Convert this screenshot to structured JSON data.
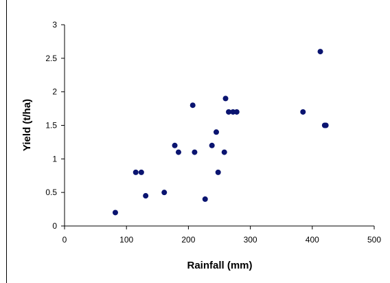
{
  "chart_data": {
    "type": "scatter",
    "title": "",
    "xlabel": "Rainfall (mm)",
    "ylabel": "Yield (t/ha)",
    "xlim": [
      0,
      500
    ],
    "ylim": [
      0,
      3
    ],
    "x_ticks": [
      0,
      100,
      200,
      300,
      400,
      500
    ],
    "y_ticks": [
      0,
      0.5,
      1,
      1.5,
      2,
      2.5,
      3
    ],
    "x_tick_labels": [
      "0",
      "100",
      "200",
      "300",
      "400",
      "500"
    ],
    "y_tick_labels": [
      "0",
      "0.5",
      "1",
      "1.5",
      "2",
      "2.5",
      "3"
    ],
    "grid": false,
    "legend": "none",
    "marker_color": "#0a1470",
    "series": [
      {
        "points": [
          {
            "x": 82,
            "y": 0.2
          },
          {
            "x": 115,
            "y": 0.8
          },
          {
            "x": 124,
            "y": 0.8
          },
          {
            "x": 131,
            "y": 0.45
          },
          {
            "x": 161,
            "y": 0.5
          },
          {
            "x": 178,
            "y": 1.2
          },
          {
            "x": 184,
            "y": 1.1
          },
          {
            "x": 207,
            "y": 1.8
          },
          {
            "x": 210,
            "y": 1.1
          },
          {
            "x": 227,
            "y": 0.4
          },
          {
            "x": 238,
            "y": 1.2
          },
          {
            "x": 245,
            "y": 1.4
          },
          {
            "x": 248,
            "y": 0.8
          },
          {
            "x": 258,
            "y": 1.1
          },
          {
            "x": 260,
            "y": 1.9
          },
          {
            "x": 265,
            "y": 1.7
          },
          {
            "x": 272,
            "y": 1.7
          },
          {
            "x": 278,
            "y": 1.7
          },
          {
            "x": 385,
            "y": 1.7
          },
          {
            "x": 413,
            "y": 2.6
          },
          {
            "x": 420,
            "y": 1.5
          },
          {
            "x": 422,
            "y": 1.5
          }
        ]
      }
    ]
  }
}
